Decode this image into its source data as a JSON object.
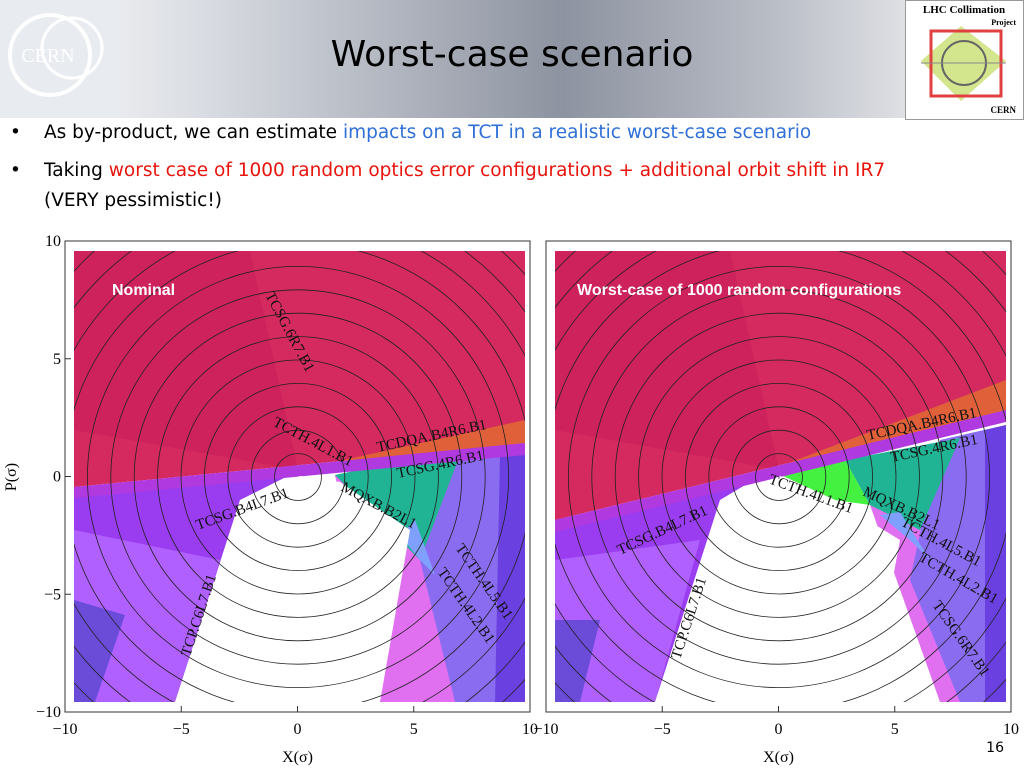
{
  "header": {
    "title": "Worst-case scenario",
    "logo_left": "CERN",
    "logo_right": [
      "LHC Collimation",
      "Project",
      "CERN"
    ]
  },
  "bullets": [
    {
      "segments": [
        {
          "text": "As by-product, we can estimate ",
          "color": "#000000"
        },
        {
          "text": "impacts on a TCT in a realistic worst-case scenario",
          "color": "#2e6fd8"
        }
      ]
    },
    {
      "segments": [
        {
          "text": "Taking ",
          "color": "#000000"
        },
        {
          "text": "worst case of 1000 random optics error configurations + additional orbit shift in IR7",
          "color": "#e8140c"
        },
        {
          "text": "(VERY pessimistic!)",
          "color": "#000000"
        }
      ]
    }
  ],
  "plots": [
    {
      "label": "Nominal",
      "x_ticks": [
        "−10",
        "−5",
        "0",
        "5",
        "10"
      ],
      "y_ticks": [
        "10",
        "5",
        "0",
        "−5",
        "−10"
      ],
      "x_label": "X(σ)",
      "y_label": "P(σ)",
      "collimators": [
        "TCSG.6R7.B1",
        "TCTH.4L1.B1",
        "TCDQA.B4R6.B1",
        "TCSG.4R6.B1",
        "TCSG.B4L7.B1",
        "MQXB.B2L1",
        "TCTH.4L5.B1",
        "TCTH.4L2.B1",
        "TCP.C6L7.B1"
      ]
    },
    {
      "label": "Worst-case of 1000 random configurations",
      "x_ticks": [
        "−10",
        "−5",
        "0",
        "5",
        "10"
      ],
      "x_label": "X(σ)",
      "collimators": [
        "TCDQA.B4R6.B1",
        "TCSG.4R6.B1",
        "TCTH.4L1.B1",
        "MQXB.B2L1",
        "TCTH.4L5.B1",
        "TCTH.4L2.B1",
        "TCSG.6R7.B1",
        "TCSG.B4L7.B1",
        "TCP.C6L7.B1"
      ]
    }
  ],
  "page_number": "16"
}
